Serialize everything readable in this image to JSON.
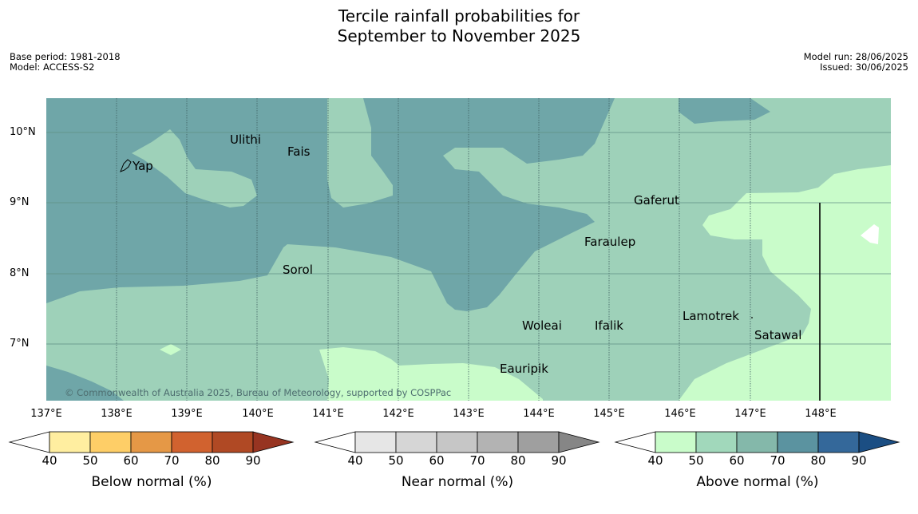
{
  "title_line1": "Tercile rainfall probabilities for",
  "title_line2": "September to November 2025",
  "meta": {
    "base_period": "Base period: 1981-2018",
    "model": "Model: ACCESS-S2",
    "model_run": "Model run: 28/06/2025",
    "issued": "Issued: 30/06/2025"
  },
  "map": {
    "lat_labels": [
      "10°N",
      "9°N",
      "8°N",
      "7°N"
    ],
    "lon_labels": [
      "137°E",
      "138°E",
      "139°E",
      "140°E",
      "141°E",
      "142°E",
      "143°E",
      "144°E",
      "145°E",
      "146°E",
      "147°E",
      "148°E"
    ],
    "places": [
      "Ulithi",
      "Fais",
      "Yap",
      "Gaferut",
      "Faraulep",
      "Sorol",
      "Woleai",
      "Ifalik",
      "Lamotrek",
      "Satawal",
      "Eauripik"
    ],
    "copyright": "© Commonwealth of Australia 2025, Bureau of Meteorology, supported by COSPPac",
    "colors": {
      "dark_teal": "#6fa6a8",
      "mid_green": "#9ed1b9",
      "light_green": "#c9fcca",
      "white": "#ffffff"
    }
  },
  "colorbars": [
    {
      "title": "Below normal (%)",
      "ticks": [
        "40",
        "50",
        "60",
        "70",
        "80",
        "90"
      ],
      "colors": [
        "#ffeea0",
        "#fece67",
        "#e59846",
        "#d1622f",
        "#b04924",
        "#973421"
      ]
    },
    {
      "title": "Near normal (%)",
      "ticks": [
        "40",
        "50",
        "60",
        "70",
        "80",
        "90"
      ],
      "colors": [
        "#e6e6e6",
        "#d6d6d6",
        "#c6c6c6",
        "#b3b3b3",
        "#9f9f9f",
        "#868686"
      ]
    },
    {
      "title": "Above normal (%)",
      "ticks": [
        "40",
        "50",
        "60",
        "70",
        "80",
        "90"
      ],
      "colors": [
        "#c9fcca",
        "#a1d8bb",
        "#84b8aa",
        "#5b93a0",
        "#34689a",
        "#1b4e83"
      ]
    }
  ]
}
